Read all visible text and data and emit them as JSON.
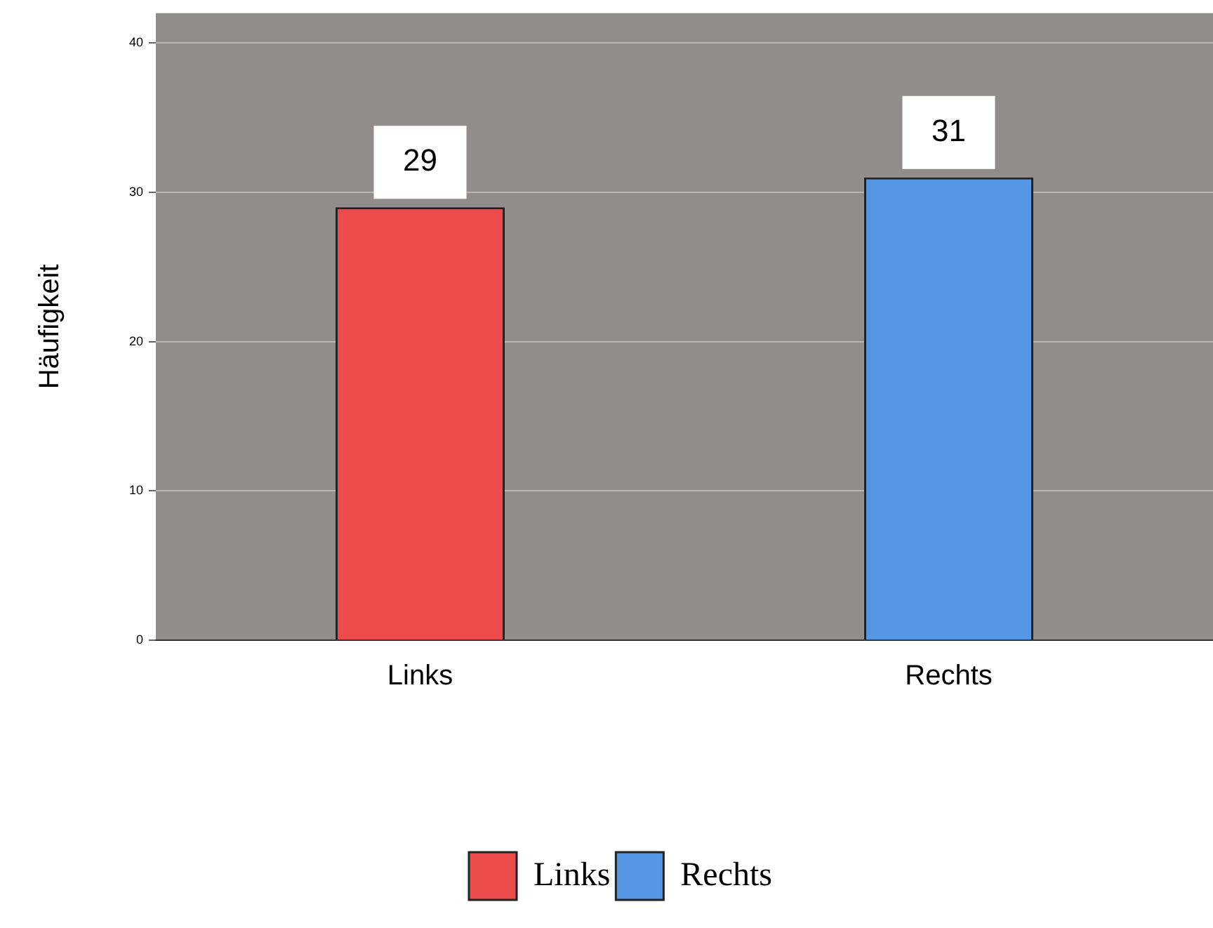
{
  "chart_data": {
    "type": "bar",
    "ylabel": "Häufigkeit",
    "categories": [
      "Links",
      "Rechts"
    ],
    "series": [
      {
        "name": "Links",
        "color": "#ec4b4b",
        "values": [
          29,
          null
        ]
      },
      {
        "name": "Rechts",
        "color": "#5597e4",
        "values": [
          null,
          31
        ]
      }
    ],
    "ylim": [
      0,
      42
    ],
    "yticks": [
      0,
      10,
      20,
      30,
      40
    ],
    "grid": "y",
    "legend": "bottom",
    "data_labels": true
  }
}
